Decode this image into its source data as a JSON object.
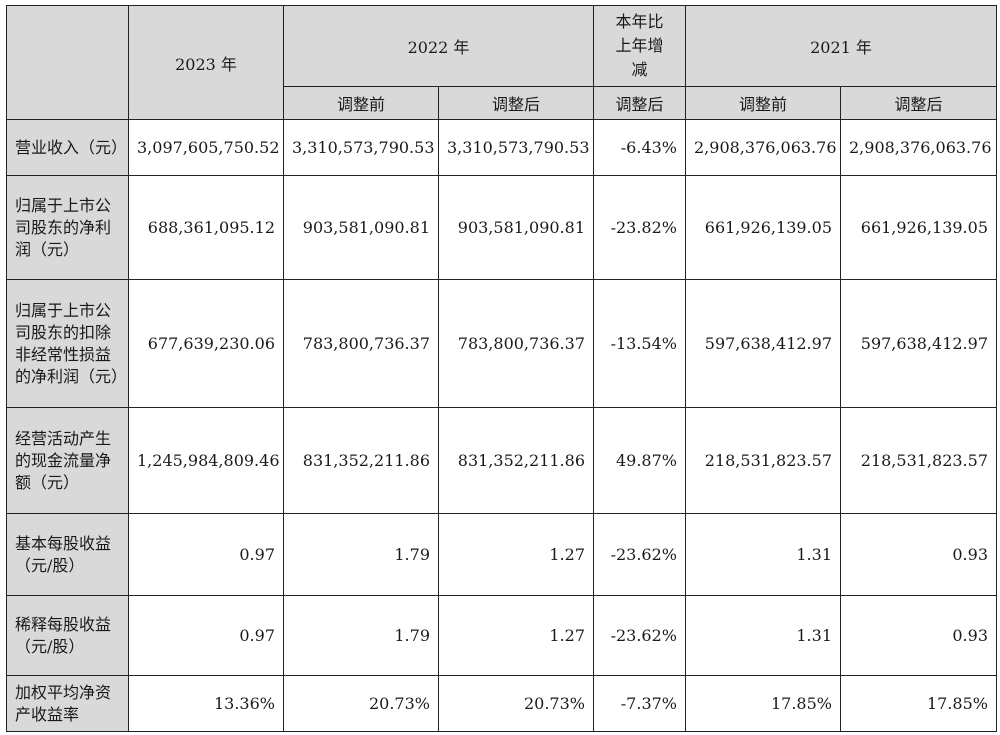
{
  "headers": {
    "y2023": "2023 年",
    "y2022": "2022 年",
    "yoy": "本年比上年增减",
    "y2021": "2021 年",
    "before_2022": "调整前",
    "after_2022": "调整后",
    "yoy_after": "调整后",
    "before_2021": "调整前",
    "after_2021": "调整后"
  },
  "rows": [
    {
      "label": "营业收入（元）",
      "v2023": "3,097,605,750.52",
      "v2022_before": "3,310,573,790.53",
      "v2022_after": "3,310,573,790.53",
      "yoy": "-6.43%",
      "v2021_before": "2,908,376,063.76",
      "v2021_after": "2,908,376,063.76"
    },
    {
      "label": "归属于上市公司股东的净利润（元）",
      "v2023": "688,361,095.12",
      "v2022_before": "903,581,090.81",
      "v2022_after": "903,581,090.81",
      "yoy": "-23.82%",
      "v2021_before": "661,926,139.05",
      "v2021_after": "661,926,139.05"
    },
    {
      "label": "归属于上市公司股东的扣除非经常性损益的净利润（元）",
      "v2023": "677,639,230.06",
      "v2022_before": "783,800,736.37",
      "v2022_after": "783,800,736.37",
      "yoy": "-13.54%",
      "v2021_before": "597,638,412.97",
      "v2021_after": "597,638,412.97"
    },
    {
      "label": "经营活动产生的现金流量净额（元）",
      "v2023": "1,245,984,809.46",
      "v2022_before": "831,352,211.86",
      "v2022_after": "831,352,211.86",
      "yoy": "49.87%",
      "v2021_before": "218,531,823.57",
      "v2021_after": "218,531,823.57"
    },
    {
      "label": "基本每股收益（元/股）",
      "v2023": "0.97",
      "v2022_before": "1.79",
      "v2022_after": "1.27",
      "yoy": "-23.62%",
      "v2021_before": "1.31",
      "v2021_after": "0.93"
    },
    {
      "label": "稀释每股收益（元/股）",
      "v2023": "0.97",
      "v2022_before": "1.79",
      "v2022_after": "1.27",
      "yoy": "-23.62%",
      "v2021_before": "1.31",
      "v2021_after": "0.93"
    },
    {
      "label": "加权平均净资产收益率",
      "v2023": "13.36%",
      "v2022_before": "20.73%",
      "v2022_after": "20.73%",
      "yoy": "-7.37%",
      "v2021_before": "17.85%",
      "v2021_after": "17.85%"
    }
  ]
}
